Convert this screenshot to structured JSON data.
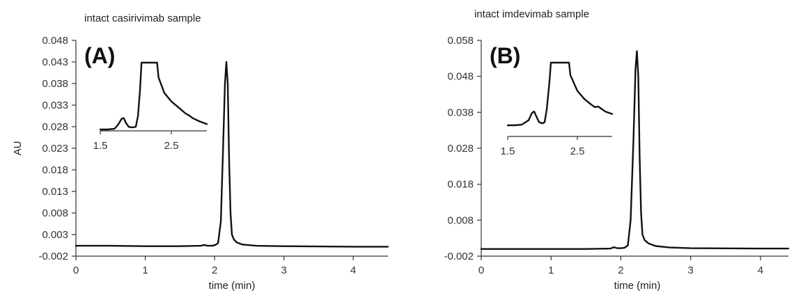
{
  "chart_data": [
    {
      "type": "line",
      "panel_label": "(A)",
      "title": "intact casirivimab sample",
      "xlabel": "time (min)",
      "ylabel": "AU",
      "xlim": [
        0,
        4.5
      ],
      "ylim": [
        -0.002,
        0.048
      ],
      "x_ticks": [
        "0",
        "1",
        "2",
        "3",
        "4"
      ],
      "y_ticks": [
        "-0.002",
        "0.003",
        "0.008",
        "0.013",
        "0.018",
        "0.023",
        "0.028",
        "0.033",
        "0.038",
        "0.043",
        "0.048"
      ],
      "grid": false,
      "series": [
        {
          "x": [
            0,
            0.5,
            1.0,
            1.5,
            1.8,
            1.85,
            1.9,
            1.95,
            2.0,
            2.05,
            2.09,
            2.12,
            2.15,
            2.17,
            2.19,
            2.21,
            2.23,
            2.25,
            2.28,
            2.32,
            2.4,
            2.6,
            3.0,
            4.0,
            4.5
          ],
          "y": [
            0.0004,
            0.0004,
            0.0003,
            0.0003,
            0.0004,
            0.0006,
            0.0004,
            0.0004,
            0.0005,
            0.001,
            0.006,
            0.022,
            0.038,
            0.043,
            0.038,
            0.02,
            0.008,
            0.003,
            0.0018,
            0.0012,
            0.0007,
            0.0004,
            0.0003,
            0.0002,
            0.0002
          ]
        }
      ],
      "inset": {
        "xlim": [
          1.5,
          3.0
        ],
        "x_ticks": [
          "1.5",
          "2.5"
        ],
        "series": [
          {
            "x": [
              1.5,
              1.6,
              1.7,
              1.75,
              1.8,
              1.83,
              1.86,
              1.9,
              1.95,
              2.0,
              2.03,
              2.06,
              2.08,
              2.3,
              2.32,
              2.4,
              2.5,
              2.6,
              2.7,
              2.75,
              2.8,
              2.9,
              3.0
            ],
            "y": [
              0.0,
              0.0,
              0.01,
              0.07,
              0.16,
              0.17,
              0.1,
              0.04,
              0.03,
              0.04,
              0.2,
              0.6,
              1.0,
              1.0,
              0.78,
              0.55,
              0.42,
              0.33,
              0.24,
              0.21,
              0.17,
              0.12,
              0.08
            ]
          }
        ]
      }
    },
    {
      "type": "line",
      "panel_label": "(B)",
      "title": "intact imdevimab sample",
      "xlabel": "time (min)",
      "ylabel": "",
      "xlim": [
        0,
        4.4
      ],
      "ylim": [
        -0.002,
        0.058
      ],
      "x_ticks": [
        "0",
        "1",
        "2",
        "3",
        "4"
      ],
      "y_ticks": [
        "-0.002",
        "0.008",
        "0.018",
        "0.028",
        "0.038",
        "0.048",
        "0.058"
      ],
      "grid": false,
      "series": [
        {
          "x": [
            0,
            0.5,
            1.0,
            1.5,
            1.85,
            1.9,
            1.95,
            2.0,
            2.05,
            2.1,
            2.14,
            2.18,
            2.21,
            2.23,
            2.25,
            2.27,
            2.29,
            2.31,
            2.34,
            2.4,
            2.5,
            2.7,
            3.0,
            4.0,
            4.4
          ],
          "y": [
            0.0,
            0.0,
            0.0,
            0.0,
            0.0001,
            0.0005,
            0.0002,
            0.0002,
            0.0003,
            0.001,
            0.008,
            0.03,
            0.05,
            0.055,
            0.048,
            0.025,
            0.01,
            0.004,
            0.0025,
            0.0015,
            0.0008,
            0.0004,
            0.0002,
            0.0001,
            0.0001
          ]
        }
      ],
      "inset": {
        "xlim": [
          1.5,
          3.0
        ],
        "x_ticks": [
          "1.5",
          "2.5"
        ],
        "series": [
          {
            "x": [
              1.5,
              1.6,
              1.7,
              1.8,
              1.85,
              1.88,
              1.92,
              1.95,
              2.0,
              2.03,
              2.06,
              2.1,
              2.12,
              2.38,
              2.4,
              2.5,
              2.6,
              2.7,
              2.75,
              2.8,
              2.85,
              2.9,
              3.0
            ],
            "y": [
              0.0,
              0.0,
              0.01,
              0.08,
              0.2,
              0.22,
              0.12,
              0.05,
              0.03,
              0.05,
              0.25,
              0.7,
              1.0,
              1.0,
              0.8,
              0.55,
              0.42,
              0.33,
              0.29,
              0.3,
              0.26,
              0.22,
              0.18
            ]
          }
        ]
      }
    }
  ]
}
